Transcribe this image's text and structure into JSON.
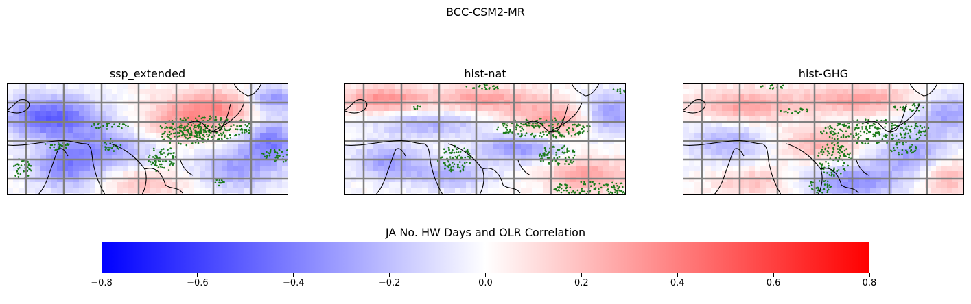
{
  "figure": {
    "title": "BCC-CSM2-MR"
  },
  "panels": [
    {
      "title": "ssp_extended"
    },
    {
      "title": "hist-nat"
    },
    {
      "title": "hist-GHG"
    }
  ],
  "colorbar": {
    "label": "JA No. HW Days and OLR Correlation",
    "colormap": "bwr",
    "vmin": -0.8,
    "vmax": 0.8,
    "ticks": [
      "−0.8",
      "−0.6",
      "−0.4",
      "−0.2",
      "0.0",
      "0.2",
      "0.4",
      "0.6",
      "0.8"
    ],
    "colors": {
      "low": "#0000ff",
      "mid": "#ffffff",
      "high": "#ff0000"
    }
  },
  "map_style": {
    "gridline_color": "#808080",
    "coastline_color": "#000000",
    "significance_marker_color": "#1a7a1a"
  }
}
